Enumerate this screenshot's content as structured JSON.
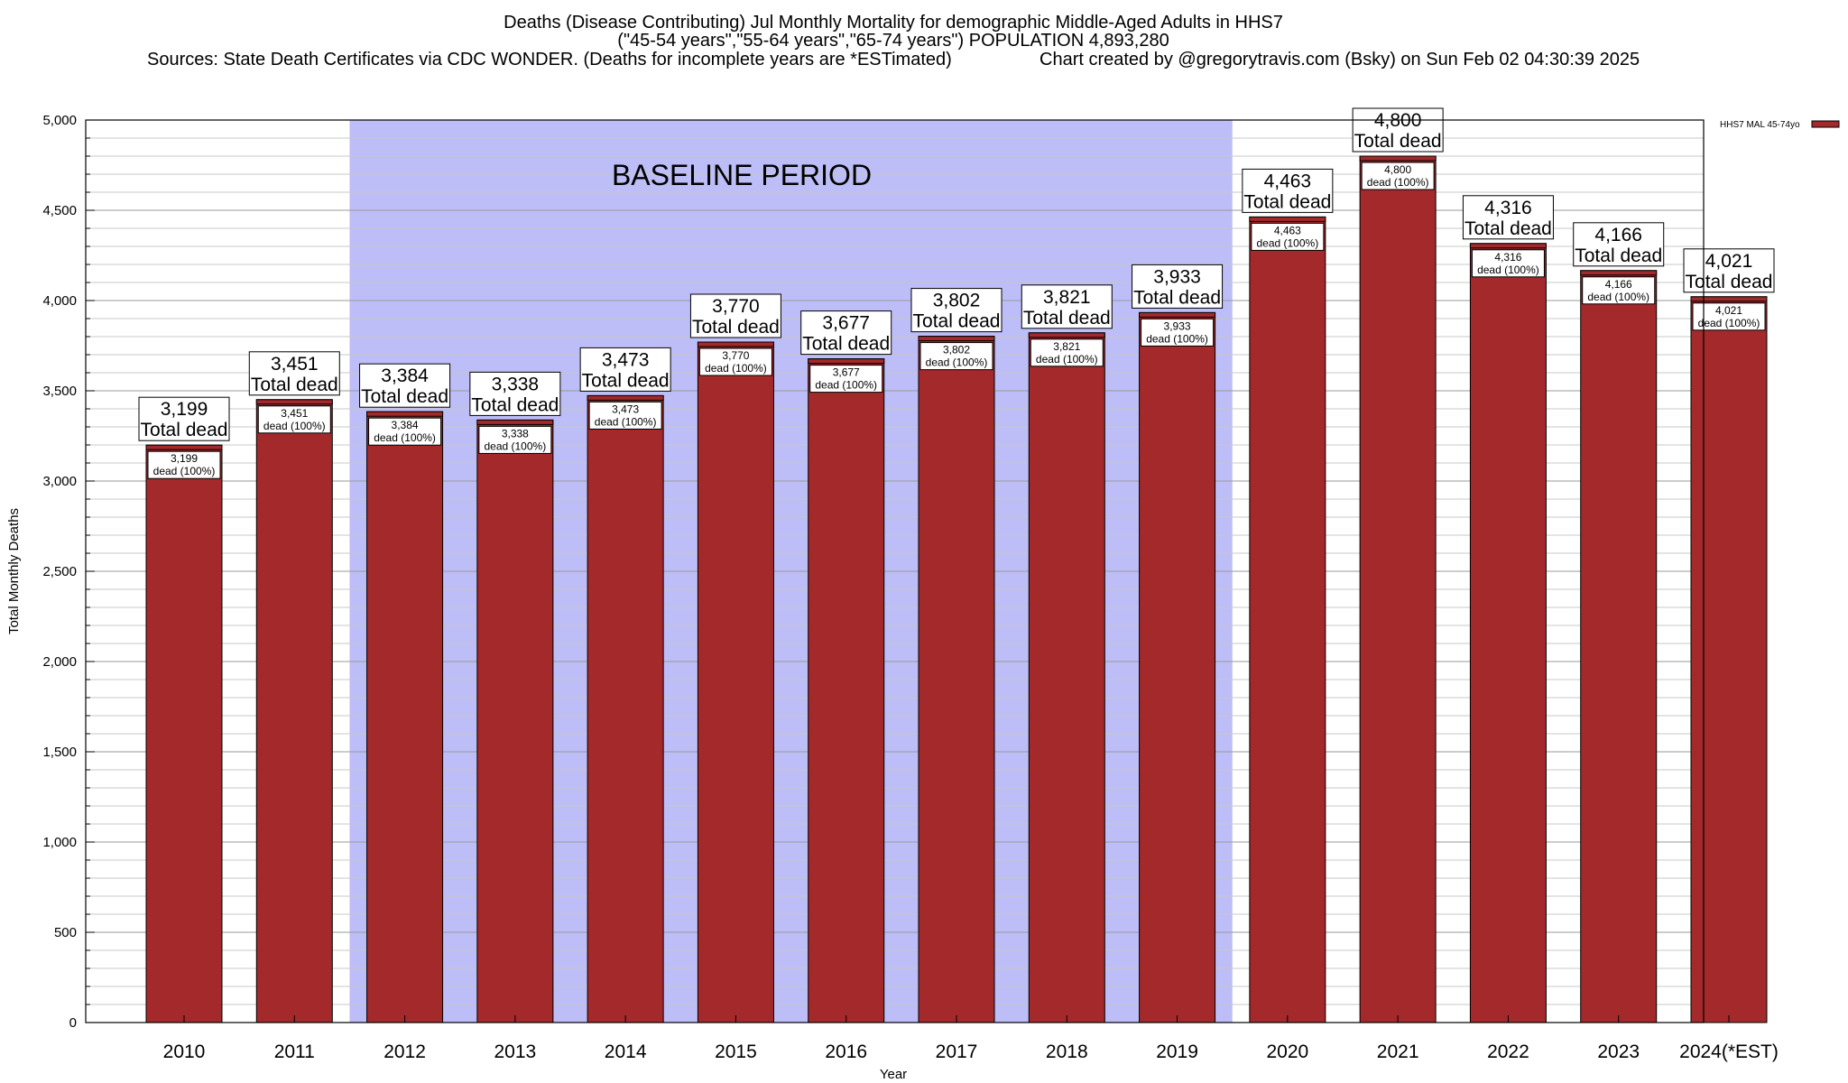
{
  "header": {
    "title_line1": "Deaths (Disease Contributing) Jul Monthly Mortality for demographic Middle-Aged Adults in HHS7",
    "title_line2": "(\"45-54 years\",\"55-64 years\",\"65-74 years\") POPULATION 4,893,280",
    "sources": "Sources: State Death Certificates via CDC WONDER. (Deaths for incomplete years are *ESTimated)",
    "credit": "Chart created by @gregorytravis.com (Bsky) on Sun Feb 02 04:30:39 2025"
  },
  "chart_data": {
    "type": "bar",
    "categories": [
      "2010",
      "2011",
      "2012",
      "2013",
      "2014",
      "2015",
      "2016",
      "2017",
      "2018",
      "2019",
      "2020",
      "2021",
      "2022",
      "2023",
      "2024(*EST)"
    ],
    "series": [
      {
        "name": "HHS7 MAL 45-74yo",
        "values": [
          3199,
          3451,
          3384,
          3338,
          3473,
          3770,
          3677,
          3802,
          3821,
          3933,
          4463,
          4800,
          4316,
          4166,
          4021
        ]
      }
    ],
    "value_labels": [
      "3,199",
      "3,451",
      "3,384",
      "3,338",
      "3,473",
      "3,770",
      "3,677",
      "3,802",
      "3,821",
      "3,933",
      "4,463",
      "4,800",
      "4,316",
      "4,166",
      "4,021"
    ],
    "total_label": "Total dead",
    "share_label": "dead (100%)",
    "xlabel": "Year",
    "ylabel": "Total Monthly Deaths",
    "ylim": [
      0,
      5000
    ],
    "y_ticks": [
      0,
      500,
      1000,
      1500,
      2000,
      2500,
      3000,
      3500,
      4000,
      4500,
      5000
    ],
    "y_tick_labels": [
      "0",
      "500",
      "1,000",
      "1,500",
      "2,000",
      "2,500",
      "3,000",
      "3,500",
      "4,000",
      "4,500",
      "5,000"
    ],
    "y_minor_step": 100,
    "grid": true,
    "baseline_period": {
      "label": "BASELINE PERIOD",
      "from": "2012",
      "to": "2019",
      "color": "#bdbdf7"
    },
    "legend_position": "top-right",
    "colors": {
      "bar": "#a3292b",
      "bar_cap": "#a3292b"
    }
  }
}
